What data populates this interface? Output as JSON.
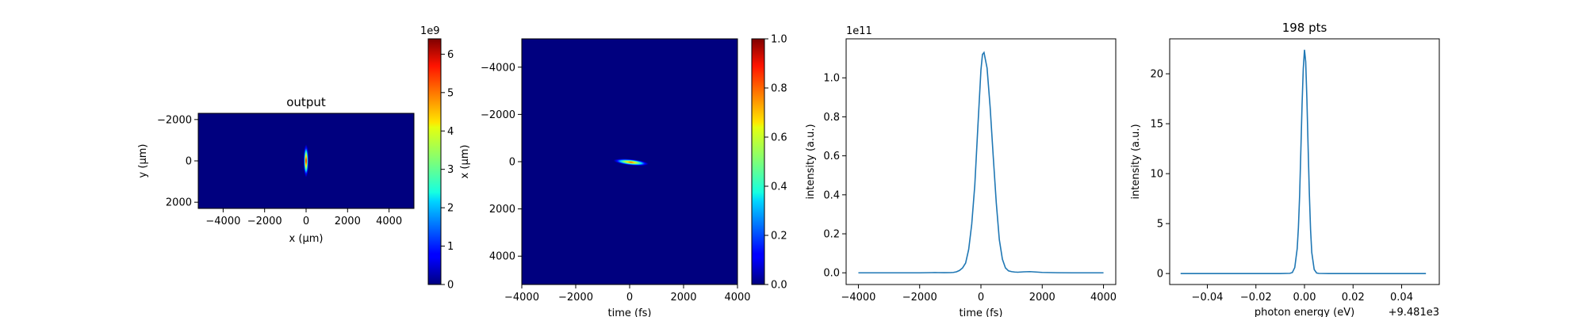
{
  "chart_data": [
    {
      "type": "heatmap",
      "title": "output",
      "xlabel": "x (μm)",
      "ylabel": "y (μm)",
      "xlim": [
        -5200,
        5200
      ],
      "ylim": [
        2300,
        -2300
      ],
      "xticks": [
        -4000,
        -2000,
        0,
        2000,
        4000
      ],
      "xtick_labels": [
        "−4000",
        "−2000",
        "0",
        "2000",
        "4000"
      ],
      "yticks": [
        -2000,
        0,
        2000
      ],
      "ytick_labels": [
        "−2000",
        "0",
        "2000"
      ],
      "colormap": "jet",
      "background_color": "#00007f",
      "spot": {
        "x_center": 0,
        "y_center": 0,
        "x_fwhm": 120,
        "y_fwhm": 800,
        "peak": 6200000000.0
      },
      "colorbar": {
        "range": [
          0,
          6400000000.0
        ],
        "exponent_label": "1e9",
        "ticks": [
          0,
          1000000000.0,
          2000000000.0,
          3000000000.0,
          4000000000.0,
          5000000000.0,
          6000000000.0
        ],
        "tick_labels": [
          "0",
          "1",
          "2",
          "3",
          "4",
          "5",
          "6"
        ]
      },
      "grid": false
    },
    {
      "type": "heatmap",
      "title": "",
      "xlabel": "time (fs)",
      "ylabel": "x (μm)",
      "xlim": [
        -4000,
        4000
      ],
      "ylim": [
        5200,
        -5200
      ],
      "xticks": [
        -4000,
        -2000,
        0,
        2000,
        4000
      ],
      "xtick_labels": [
        "−4000",
        "−2000",
        "0",
        "2000",
        "4000"
      ],
      "yticks": [
        -4000,
        -2000,
        0,
        2000,
        4000
      ],
      "ytick_labels": [
        "−4000",
        "−2000",
        "0",
        "2000",
        "4000"
      ],
      "colormap": "jet",
      "background_color": "#00007f",
      "streak": {
        "t_start": -600,
        "x_start": -50,
        "t_end": 700,
        "x_end": 100,
        "width": 130,
        "peak": 1.0
      },
      "colorbar": {
        "range": [
          0,
          1
        ],
        "exponent_label": "",
        "ticks": [
          0,
          0.2,
          0.4,
          0.6,
          0.8,
          1.0
        ],
        "tick_labels": [
          "0.0",
          "0.2",
          "0.4",
          "0.6",
          "0.8",
          "1.0"
        ]
      },
      "grid": false
    },
    {
      "type": "line",
      "title": "",
      "xlabel": "time (fs)",
      "ylabel": "intensity (a.u.)",
      "y_exponent_label": "1e11",
      "xlim": [
        -4400,
        4400
      ],
      "ylim": [
        -6000000000.0,
        120000000000.0
      ],
      "xticks": [
        -4000,
        -2000,
        0,
        2000,
        4000
      ],
      "xtick_labels": [
        "−4000",
        "−2000",
        "0",
        "2000",
        "4000"
      ],
      "yticks": [
        0,
        20000000000.0,
        40000000000.0,
        60000000000.0,
        80000000000.0,
        100000000000.0
      ],
      "ytick_labels": [
        "0.0",
        "0.2",
        "0.4",
        "0.6",
        "0.8",
        "1.0"
      ],
      "line_color": "#1f77b4",
      "series": [
        {
          "x": [
            -4000,
            -3000,
            -2000,
            -1800,
            -1600,
            -1500,
            -1400,
            -1200,
            -1000,
            -900,
            -800,
            -700,
            -600,
            -500,
            -400,
            -300,
            -200,
            -100,
            0,
            50,
            100,
            200,
            300,
            400,
            500,
            600,
            700,
            800,
            900,
            1000,
            1100,
            1200,
            1400,
            1600,
            1700,
            1800,
            2000,
            2500,
            3000,
            4000
          ],
          "y": [
            0,
            0,
            0,
            50000000.0,
            100000000.0,
            120000000.0,
            100000000.0,
            60000000.0,
            100000000.0,
            200000000.0,
            500000000.0,
            1200000000.0,
            2500000000.0,
            5000000000.0,
            12000000000.0,
            25000000000.0,
            45000000000.0,
            75000000000.0,
            104000000000.0,
            112000000000.0,
            113000000000.0,
            105000000000.0,
            85000000000.0,
            60000000000.0,
            36000000000.0,
            17000000000.0,
            7000000000.0,
            2500000000.0,
            1000000000.0,
            600000000.0,
            400000000.0,
            300000000.0,
            500000000.0,
            600000000.0,
            500000000.0,
            400000000.0,
            200000000.0,
            50000000.0,
            0,
            0
          ]
        }
      ],
      "grid": false
    },
    {
      "type": "line",
      "title": "198 pts",
      "xlabel": "photon energy (eV)",
      "ylabel": "intensity (a.u.)",
      "x_offset_label": "+9.481e3",
      "xlim": [
        -0.0555,
        0.0555
      ],
      "ylim": [
        -1.1,
        23.5
      ],
      "xticks": [
        -0.04,
        -0.02,
        0,
        0.02,
        0.04
      ],
      "xtick_labels": [
        "−0.04",
        "−0.02",
        "0.00",
        "0.02",
        "0.04"
      ],
      "yticks": [
        0,
        5,
        10,
        15,
        20
      ],
      "ytick_labels": [
        "0",
        "5",
        "10",
        "15",
        "20"
      ],
      "line_color": "#1f77b4",
      "series": [
        {
          "x": [
            -0.051,
            -0.03,
            -0.01,
            -0.006,
            -0.005,
            -0.004,
            -0.003,
            -0.0025,
            -0.002,
            -0.0015,
            -0.001,
            -0.0005,
            0,
            0.0005,
            0.001,
            0.0015,
            0.002,
            0.0025,
            0.003,
            0.004,
            0.005,
            0.006,
            0.01,
            0.03,
            0.05
          ],
          "y": [
            0,
            0,
            0,
            0.02,
            0.1,
            0.6,
            2.5,
            4.6,
            7.8,
            12.3,
            16.9,
            20.5,
            22.4,
            21.2,
            17.4,
            12.6,
            8.0,
            4.4,
            2.1,
            0.4,
            0.05,
            0.01,
            0,
            0,
            0
          ]
        }
      ],
      "grid": false
    }
  ]
}
